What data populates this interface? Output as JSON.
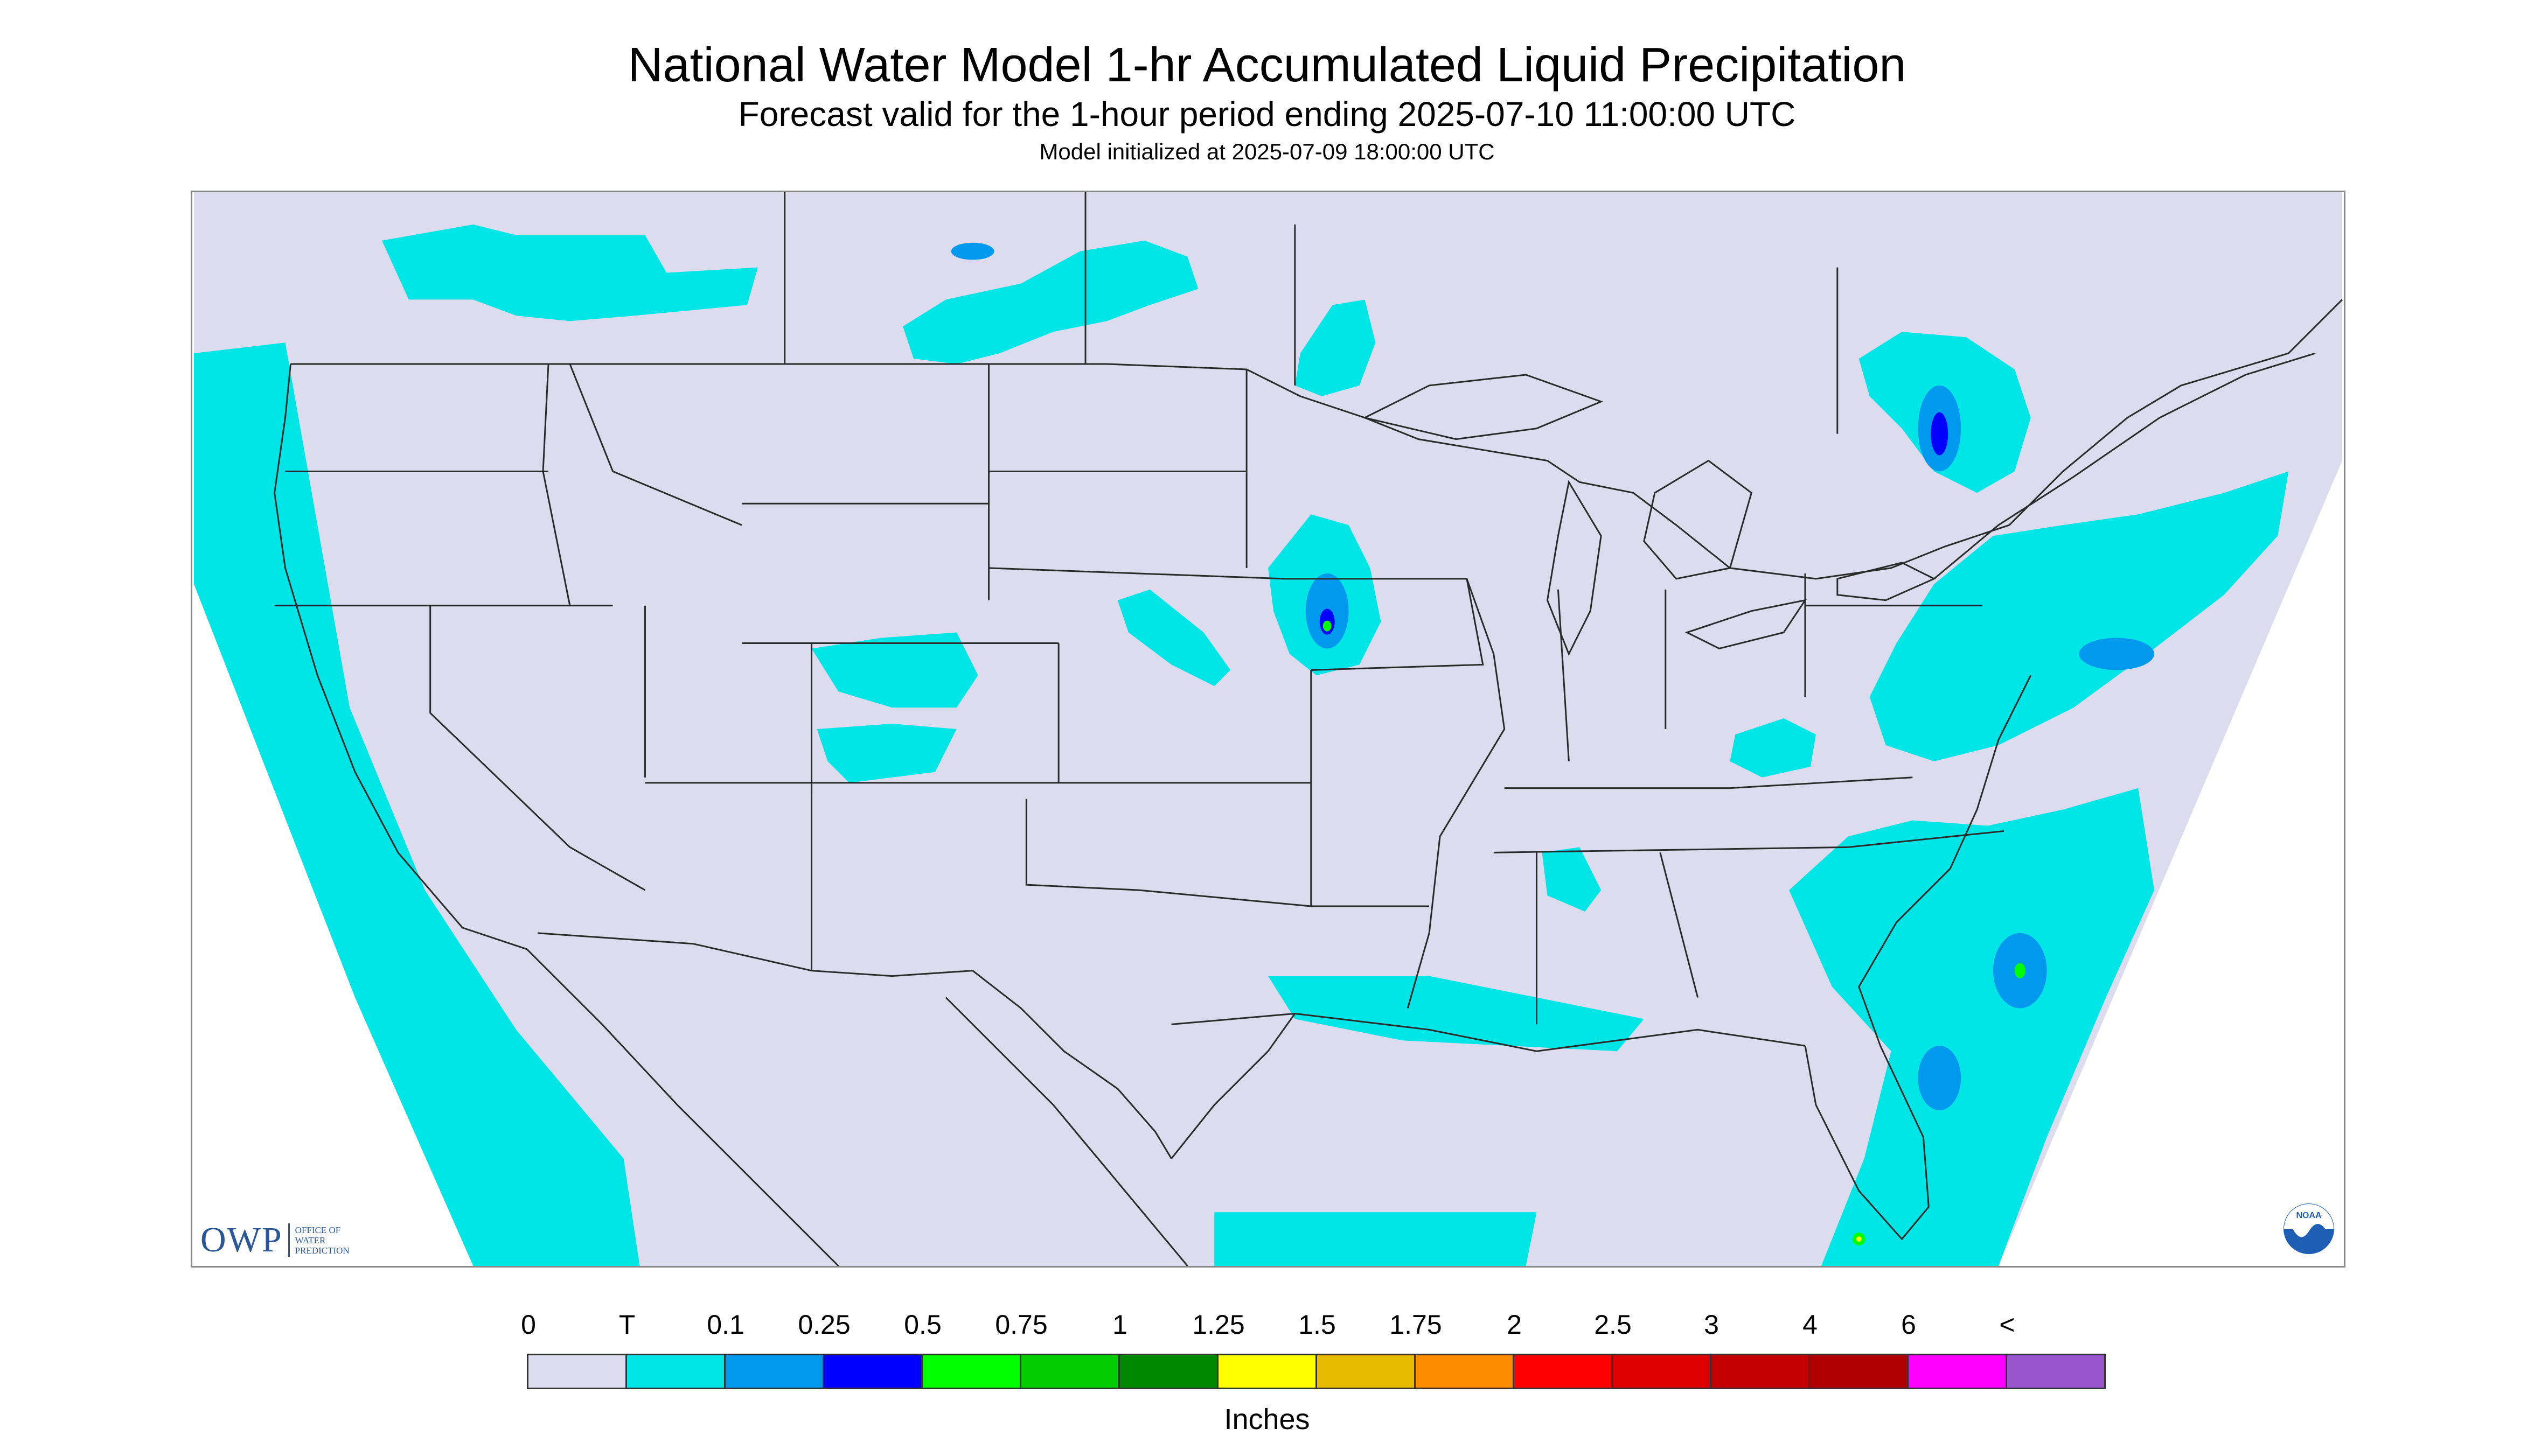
{
  "header": {
    "title": "National Water Model 1-hr Accumulated Liquid Precipitation",
    "subtitle": "Forecast valid for the 1-hour period ending 2025-07-10 11:00:00 UTC",
    "init_line": "Model initialized at 2025-07-09 18:00:00 UTC"
  },
  "map": {
    "background_color": "#dcdcee",
    "outside_projection_color": "#ffffff",
    "boundary_color": "#2a2a2a",
    "precip_trace_color": "#00e5e5",
    "precip_light_color": "#0099ee",
    "precip_moderate_color": "#0000ff",
    "precip_heavier_color": "#00ff00",
    "precip_heavy_color": "#ffff00"
  },
  "legend": {
    "labels": [
      "0",
      "T",
      "0.1",
      "0.25",
      "0.5",
      "0.75",
      "1",
      "1.25",
      "1.5",
      "1.75",
      "2",
      "2.5",
      "3",
      "4",
      "6",
      "<"
    ],
    "colors": [
      "#dcdcee",
      "#00e5e5",
      "#0099ee",
      "#0000ff",
      "#00ff00",
      "#00cc00",
      "#008800",
      "#ffff00",
      "#e6bb00",
      "#ff8c00",
      "#ff0000",
      "#dd0000",
      "#c40000",
      "#b00000",
      "#ff00ff",
      "#9955cc"
    ],
    "units": "Inches"
  },
  "logos": {
    "owp_letters": "OWP",
    "owp_text": [
      "OFFICE OF",
      "WATER",
      "PREDICTION"
    ],
    "owp_color": "#2b5796",
    "noaa_text": "NOAA",
    "noaa_icon": "noaa-seal-icon"
  }
}
